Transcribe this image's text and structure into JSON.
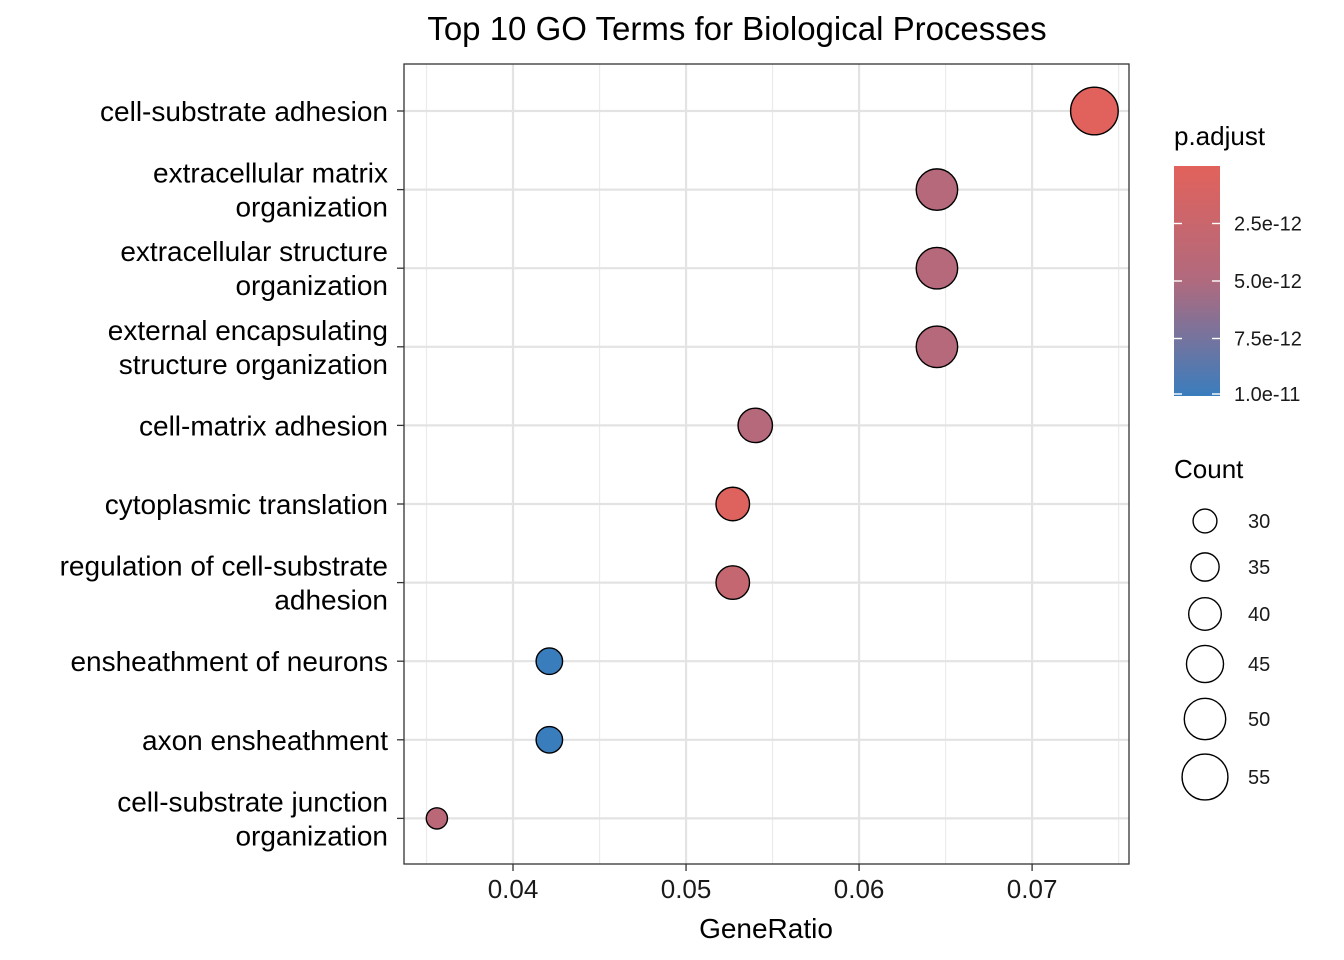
{
  "chart_data": {
    "type": "scatter",
    "title": "Top 10 GO Terms for Biological Processes",
    "xlabel": "GeneRatio",
    "ylabel": "",
    "xlim": [
      0.0337,
      0.0756
    ],
    "x_ticks": [
      "0.04",
      "0.05",
      "0.06",
      "0.07"
    ],
    "x_tick_values": [
      0.04,
      0.05,
      0.06,
      0.07
    ],
    "grid": true,
    "categories": [
      [
        "cell-substrate adhesion"
      ],
      [
        "extracellular matrix",
        "organization"
      ],
      [
        "extracellular structure",
        "organization"
      ],
      [
        "external encapsulating",
        "structure organization"
      ],
      [
        "cell-matrix adhesion"
      ],
      [
        "cytoplasmic translation"
      ],
      [
        "regulation of cell-substrate",
        "adhesion"
      ],
      [
        "ensheathment of neurons"
      ],
      [
        "axon ensheathment"
      ],
      [
        "cell-substrate junction",
        "organization"
      ]
    ],
    "points": [
      {
        "x": 0.0736,
        "count": 57,
        "p_adjust": 1e-13
      },
      {
        "x": 0.0645,
        "count": 50,
        "p_adjust": 4.5e-12
      },
      {
        "x": 0.0645,
        "count": 50,
        "p_adjust": 4.5e-12
      },
      {
        "x": 0.0645,
        "count": 50,
        "p_adjust": 4.5e-12
      },
      {
        "x": 0.054,
        "count": 42,
        "p_adjust": 4.5e-12
      },
      {
        "x": 0.0527,
        "count": 41,
        "p_adjust": 4e-13
      },
      {
        "x": 0.0527,
        "count": 41,
        "p_adjust": 3e-12
      },
      {
        "x": 0.0421,
        "count": 33,
        "p_adjust": 1e-11
      },
      {
        "x": 0.0421,
        "count": 33,
        "p_adjust": 1e-11
      },
      {
        "x": 0.0356,
        "count": 27,
        "p_adjust": 4e-12
      }
    ],
    "legend": {
      "color_title": "p.adjust",
      "color_range": [
        0,
        1e-11
      ],
      "color_low": "#E2625B",
      "color_high": "#3A7DBD",
      "color_ticks": [
        {
          "value": 2.5e-12,
          "label": "2.5e-12"
        },
        {
          "value": 5e-12,
          "label": "5.0e-12"
        },
        {
          "value": 7.5e-12,
          "label": "7.5e-12"
        },
        {
          "value": 1e-11,
          "label": "1.0e-11"
        }
      ],
      "size_title": "Count",
      "size_ticks": [
        30,
        35,
        40,
        45,
        50,
        55
      ],
      "placement": "right"
    }
  }
}
